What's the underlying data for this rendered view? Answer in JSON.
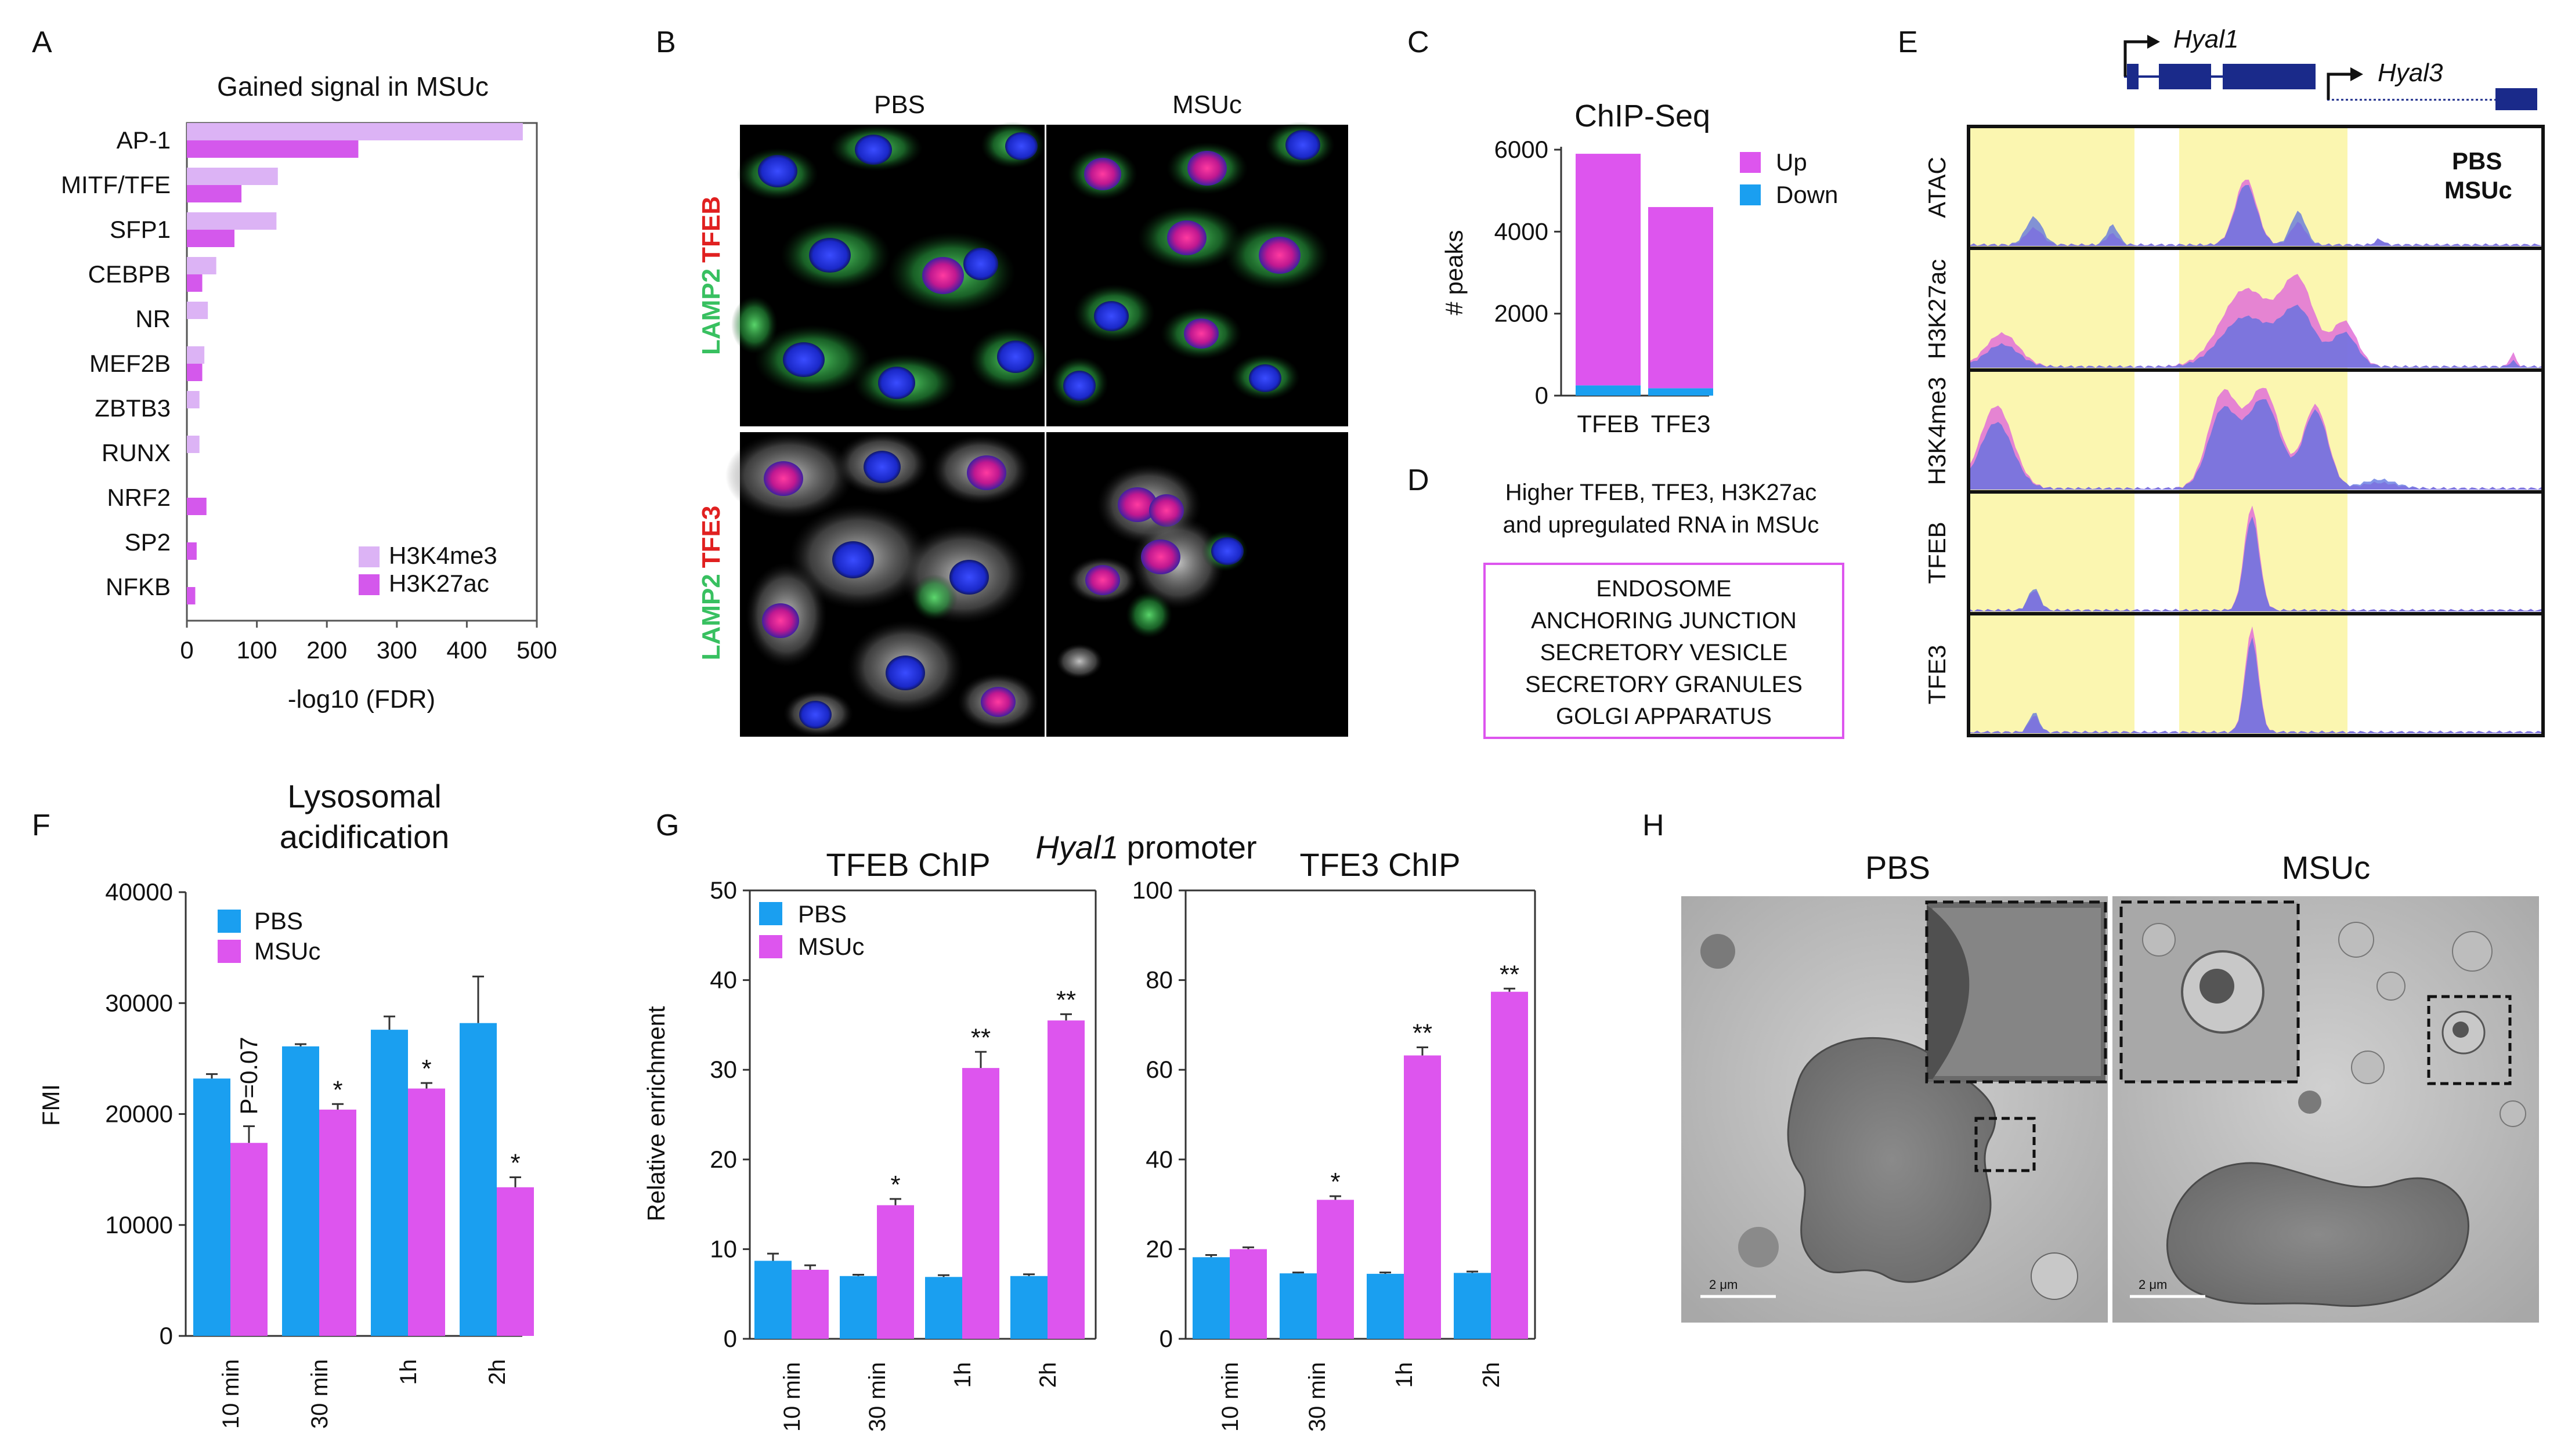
{
  "colors": {
    "pbs": "#1a9ff0",
    "msuc": "#dd55ee",
    "h3k4me3": "#dcb3f5",
    "h3k27ac": "#d458ec",
    "up": "#dd55ee",
    "down": "#1a9ff0",
    "track_yellow": "#fbf6b0",
    "box_border": "#dd55ee",
    "lamp2": "#38c060",
    "tfeb_red": "#e02020"
  },
  "panel_labels": {
    "A": "A",
    "B": "B",
    "C": "C",
    "D": "D",
    "E": "E",
    "F": "F",
    "G": "G",
    "H": "H"
  },
  "panel_a": {
    "title": "Gained signal in MSUc",
    "xlabel": "-log10 (FDR)",
    "legend": [
      "H3K4me3",
      "H3K27ac"
    ]
  },
  "panel_b": {
    "col_labels": [
      "PBS",
      "MSUc"
    ],
    "row_labels": [
      {
        "parts": [
          "LAMP2",
          "TFEB"
        ]
      },
      {
        "parts": [
          "LAMP2",
          "TFE3"
        ]
      }
    ]
  },
  "panel_c": {
    "title": "ChIP-Seq",
    "ylabel": "# peaks",
    "legend": [
      "Up",
      "Down"
    ]
  },
  "panel_d": {
    "heading_line1": "Higher TFEB, TFE3, H3K27ac",
    "heading_line2": "and upregulated RNA in MSUc",
    "terms": [
      "ENDOSOME",
      "ANCHORING JUNCTION",
      "SECRETORY VESICLE",
      "SECRETORY GRANULES",
      "GOLGI APPARATUS"
    ]
  },
  "panel_e": {
    "genes": [
      "Hyal1",
      "Hyal3"
    ],
    "tracks": [
      "ATAC",
      "H3K27ac",
      "H3K4me3",
      "TFEB",
      "TFE3"
    ],
    "legend": [
      "PBS",
      "MSUc"
    ]
  },
  "panel_f": {
    "title_line1": "Lysosomal",
    "title_line2": "acidification",
    "ylabel": "FMI",
    "legend": [
      "PBS",
      "MSUc"
    ],
    "pvalue_label": "P=0.07",
    "star": "*"
  },
  "panel_g": {
    "mid_title_gene": "Hyal1",
    "mid_title_rest": "promoter",
    "left_title": "TFEB ChIP",
    "right_title": "TFE3 ChIP",
    "ylabel": "Relative enrichment",
    "legend": [
      "PBS",
      "MSUc"
    ]
  },
  "panel_h": {
    "labels": [
      "PBS",
      "MSUc"
    ],
    "scale_text": "2 μm"
  },
  "chart_data": [
    {
      "id": "A",
      "type": "bar",
      "orientation": "horizontal",
      "title": "Gained signal in MSUc",
      "xlabel": "-log10 (FDR)",
      "ylabel": "",
      "categories": [
        "AP-1",
        "MITF/TFE",
        "SFP1",
        "CEBPB",
        "NR",
        "MEF2B",
        "ZBTB3",
        "RUNX",
        "NRF2",
        "SP2",
        "NFKB"
      ],
      "series": [
        {
          "name": "H3K4me3",
          "values": [
            480,
            130,
            128,
            42,
            30,
            25,
            18,
            18,
            0,
            0,
            0
          ]
        },
        {
          "name": "H3K27ac",
          "values": [
            245,
            78,
            68,
            22,
            0,
            22,
            0,
            0,
            28,
            14,
            12
          ]
        }
      ],
      "xlim": [
        0,
        500
      ],
      "xticks": [
        0,
        100,
        200,
        300,
        400,
        500
      ],
      "legend": "bottom-right"
    },
    {
      "id": "C",
      "type": "bar",
      "stacked": true,
      "title": "ChIP-Seq",
      "xlabel": "",
      "ylabel": "# peaks",
      "categories": [
        "TFEB",
        "TFE3"
      ],
      "series": [
        {
          "name": "Up",
          "values": [
            5650,
            4420
          ]
        },
        {
          "name": "Down",
          "values": [
            250,
            180
          ]
        }
      ],
      "ylim": [
        0,
        6000
      ],
      "yticks": [
        0,
        2000,
        4000,
        6000
      ],
      "legend": "right"
    },
    {
      "id": "F",
      "type": "bar",
      "title": "Lysosomal acidification",
      "xlabel": "",
      "ylabel": "FMI",
      "categories": [
        "10 min",
        "30 min",
        "1h",
        "2h"
      ],
      "series": [
        {
          "name": "PBS",
          "values": [
            23200,
            26100,
            27600,
            28200
          ],
          "errors": [
            400,
            200,
            1200,
            4200
          ]
        },
        {
          "name": "MSUc",
          "values": [
            17400,
            20400,
            22300,
            13400
          ],
          "errors": [
            1500,
            500,
            500,
            900
          ]
        }
      ],
      "annotations": [
        "P=0.07",
        "*",
        "*",
        "*"
      ],
      "ylim": [
        0,
        40000
      ],
      "yticks": [
        0,
        10000,
        20000,
        30000,
        40000
      ],
      "legend": "top-left"
    },
    {
      "id": "G-left",
      "type": "bar",
      "title": "TFEB ChIP",
      "xlabel": "",
      "ylabel": "Relative enrichment",
      "categories": [
        "10 min",
        "30 min",
        "1h",
        "2h"
      ],
      "series": [
        {
          "name": "PBS",
          "values": [
            8.7,
            7.0,
            6.9,
            7.0
          ],
          "errors": [
            0.8,
            0.15,
            0.2,
            0.2
          ]
        },
        {
          "name": "MSUc",
          "values": [
            7.7,
            14.9,
            30.2,
            35.5
          ],
          "errors": [
            0.5,
            0.7,
            1.8,
            0.7
          ]
        }
      ],
      "annotations": [
        "",
        "*",
        "**",
        "**"
      ],
      "ylim": [
        0,
        50
      ],
      "yticks": [
        0,
        10,
        20,
        30,
        40,
        50
      ],
      "legend": "top-left"
    },
    {
      "id": "G-right",
      "type": "bar",
      "title": "TFE3 ChIP",
      "xlabel": "",
      "ylabel": "",
      "categories": [
        "10 min",
        "30 min",
        "1h",
        "2h"
      ],
      "series": [
        {
          "name": "PBS",
          "values": [
            18.2,
            14.6,
            14.5,
            14.7
          ],
          "errors": [
            0.5,
            0.2,
            0.3,
            0.3
          ]
        },
        {
          "name": "MSUc",
          "values": [
            20.0,
            31.0,
            63.2,
            77.4
          ],
          "errors": [
            0.4,
            0.8,
            1.8,
            0.7
          ]
        }
      ],
      "annotations": [
        "",
        "*",
        "**",
        "**"
      ],
      "ylim": [
        0,
        100
      ],
      "yticks": [
        0,
        20,
        40,
        60,
        80,
        100
      ],
      "legend": "none"
    }
  ]
}
